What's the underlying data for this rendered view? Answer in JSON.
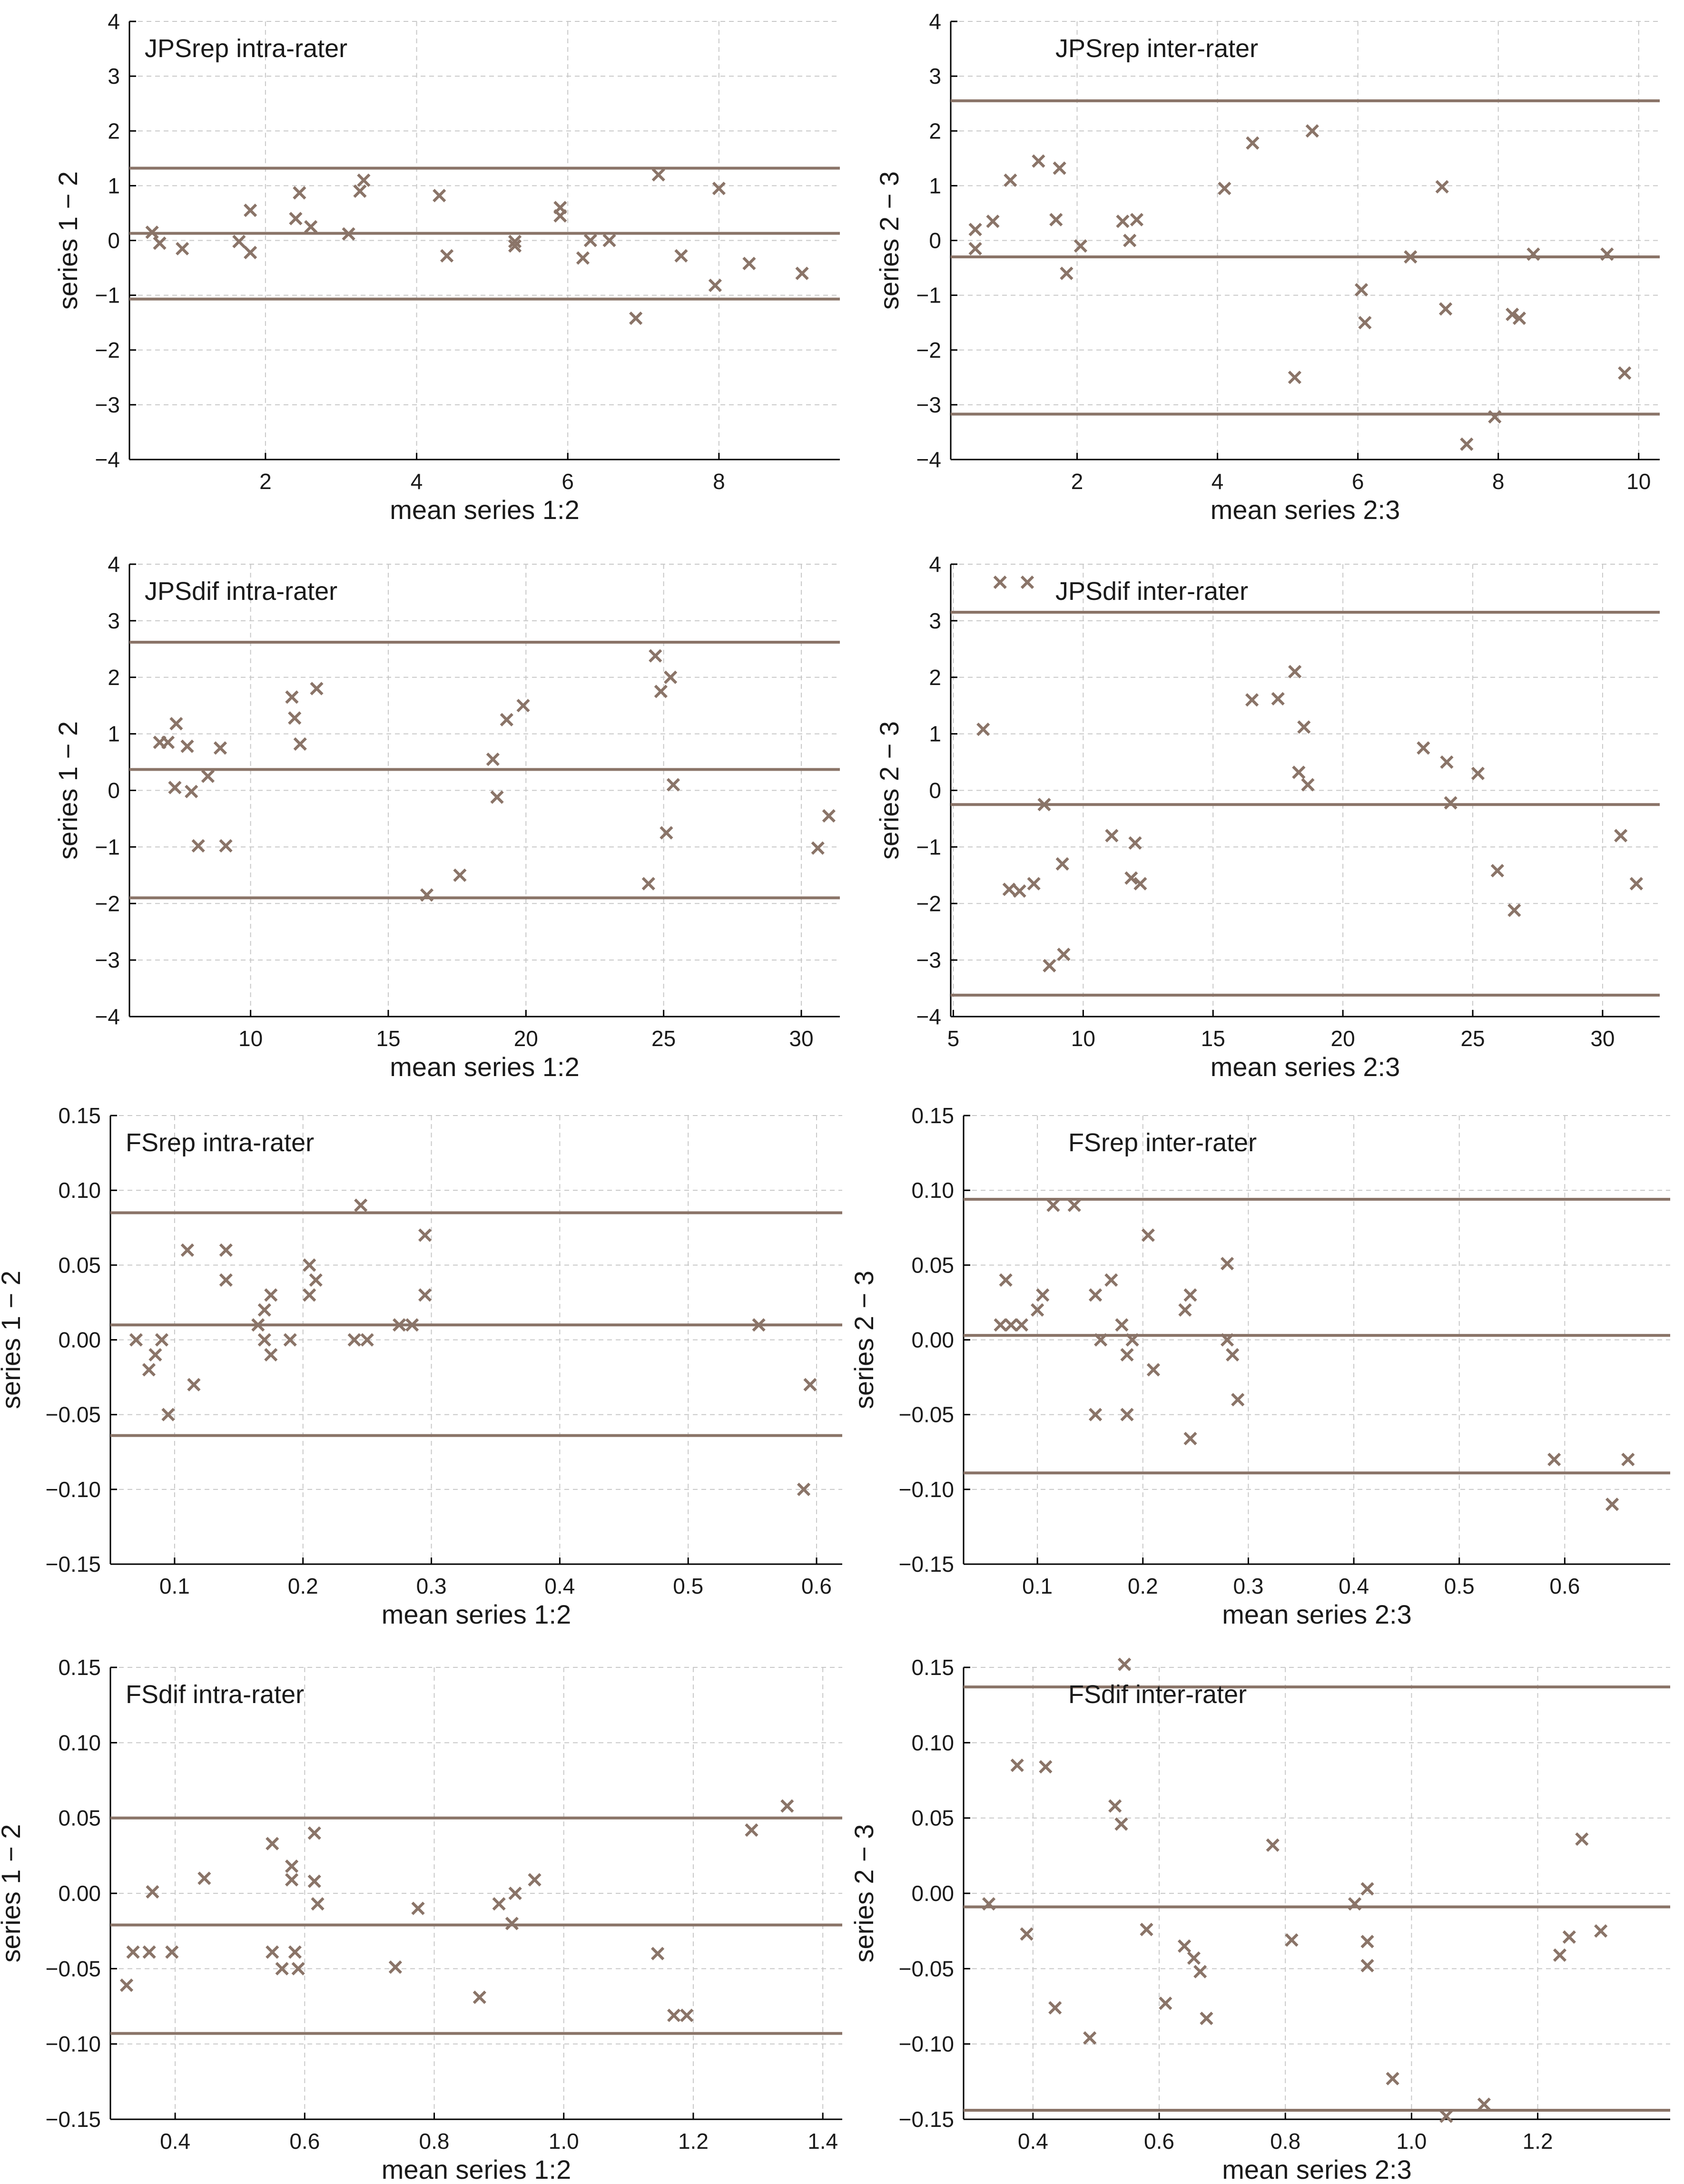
{
  "colors": {
    "marker": "#8a7468",
    "line": "#8a7468",
    "grid": "#c8c8c8",
    "axis": "#000000"
  },
  "chart_data": [
    {
      "type": "scatter",
      "title": "JPSrep intra-rater",
      "xlabel": "mean series 1:2",
      "ylabel": "series 1 − 2",
      "xlim": [
        0.2,
        9.6
      ],
      "ylim": [
        -4,
        4
      ],
      "xticks": [
        2,
        4,
        6,
        8
      ],
      "xtick_labels": [
        "2",
        "4",
        "6",
        "8"
      ],
      "yticks": [
        -4,
        -3,
        -2,
        -1,
        0,
        1,
        2,
        3,
        4
      ],
      "ytick_labels": [
        "−4",
        "−3",
        "−2",
        "−1",
        "0",
        "1",
        "2",
        "3",
        "4"
      ],
      "grid": true,
      "hlines": [
        1.32,
        0.13,
        -1.07
      ],
      "points": [
        [
          0.5,
          0.15
        ],
        [
          0.6,
          -0.05
        ],
        [
          0.9,
          -0.15
        ],
        [
          1.65,
          -0.02
        ],
        [
          1.8,
          0.55
        ],
        [
          1.8,
          -0.22
        ],
        [
          2.4,
          0.4
        ],
        [
          2.45,
          0.87
        ],
        [
          2.6,
          0.25
        ],
        [
          3.1,
          0.12
        ],
        [
          3.25,
          0.9
        ],
        [
          3.3,
          1.1
        ],
        [
          4.3,
          0.82
        ],
        [
          4.4,
          -0.28
        ],
        [
          5.3,
          -0.02
        ],
        [
          5.3,
          -0.1
        ],
        [
          5.9,
          0.6
        ],
        [
          5.9,
          0.45
        ],
        [
          6.2,
          -0.32
        ],
        [
          6.3,
          0.0
        ],
        [
          6.55,
          0.0
        ],
        [
          6.9,
          -1.42
        ],
        [
          7.2,
          1.2
        ],
        [
          7.5,
          -0.28
        ],
        [
          7.95,
          -0.82
        ],
        [
          8.0,
          0.95
        ],
        [
          8.4,
          -0.42
        ],
        [
          9.1,
          -0.6
        ]
      ]
    },
    {
      "type": "scatter",
      "title": "JPSrep inter-rater",
      "xlabel": "mean series 2:3",
      "ylabel": "series 2 − 3",
      "xlim": [
        0.2,
        10.3
      ],
      "ylim": [
        -4,
        4
      ],
      "xticks": [
        2,
        4,
        6,
        8,
        10
      ],
      "xtick_labels": [
        "2",
        "4",
        "6",
        "8",
        "10"
      ],
      "yticks": [
        -4,
        -3,
        -2,
        -1,
        0,
        1,
        2,
        3,
        4
      ],
      "ytick_labels": [
        "−4",
        "−3",
        "−2",
        "−1",
        "0",
        "1",
        "2",
        "3",
        "4"
      ],
      "grid": true,
      "hlines": [
        2.55,
        -0.3,
        -3.17
      ],
      "points": [
        [
          0.55,
          0.2
        ],
        [
          0.55,
          -0.15
        ],
        [
          0.8,
          0.35
        ],
        [
          1.05,
          1.1
        ],
        [
          1.45,
          1.45
        ],
        [
          1.7,
          0.38
        ],
        [
          1.75,
          1.32
        ],
        [
          1.85,
          -0.6
        ],
        [
          2.05,
          -0.1
        ],
        [
          2.65,
          0.35
        ],
        [
          2.75,
          0.0
        ],
        [
          2.85,
          0.38
        ],
        [
          4.1,
          0.95
        ],
        [
          4.5,
          1.78
        ],
        [
          5.1,
          -2.5
        ],
        [
          5.35,
          2.0
        ],
        [
          6.05,
          -0.9
        ],
        [
          6.1,
          -1.5
        ],
        [
          6.75,
          -0.3
        ],
        [
          7.2,
          0.98
        ],
        [
          7.25,
          -1.25
        ],
        [
          7.55,
          -3.72
        ],
        [
          7.95,
          -3.22
        ],
        [
          8.2,
          -1.35
        ],
        [
          8.3,
          -1.42
        ],
        [
          8.5,
          -0.25
        ],
        [
          9.55,
          -0.25
        ],
        [
          9.8,
          -2.42
        ]
      ]
    },
    {
      "type": "scatter",
      "title": "JPSdif intra-rater",
      "xlabel": "mean series 1:2",
      "ylabel": "series 1 − 2",
      "xlim": [
        5.6,
        31.4
      ],
      "ylim": [
        -4,
        4
      ],
      "xticks": [
        10,
        15,
        20,
        25,
        30
      ],
      "xtick_labels": [
        "10",
        "15",
        "20",
        "25",
        "30"
      ],
      "yticks": [
        -4,
        -3,
        -2,
        -1,
        0,
        1,
        2,
        3,
        4
      ],
      "ytick_labels": [
        "−4",
        "−3",
        "−2",
        "−1",
        "0",
        "1",
        "2",
        "3",
        "4"
      ],
      "grid": true,
      "hlines": [
        2.62,
        0.37,
        -1.9
      ],
      "points": [
        [
          6.7,
          0.85
        ],
        [
          7.0,
          0.85
        ],
        [
          7.25,
          0.05
        ],
        [
          7.3,
          1.18
        ],
        [
          7.7,
          0.78
        ],
        [
          7.85,
          -0.02
        ],
        [
          8.1,
          -0.98
        ],
        [
          8.45,
          0.25
        ],
        [
          8.9,
          0.75
        ],
        [
          9.1,
          -0.98
        ],
        [
          11.5,
          1.65
        ],
        [
          11.6,
          1.28
        ],
        [
          11.8,
          0.82
        ],
        [
          12.4,
          1.8
        ],
        [
          16.4,
          -1.85
        ],
        [
          17.6,
          -1.5
        ],
        [
          18.8,
          0.55
        ],
        [
          18.95,
          -0.12
        ],
        [
          19.3,
          1.25
        ],
        [
          19.9,
          1.5
        ],
        [
          24.45,
          -1.65
        ],
        [
          24.7,
          2.38
        ],
        [
          24.9,
          1.75
        ],
        [
          25.1,
          -0.75
        ],
        [
          25.25,
          2.0
        ],
        [
          25.35,
          0.1
        ],
        [
          30.6,
          -1.02
        ],
        [
          31.0,
          -0.45
        ]
      ]
    },
    {
      "type": "scatter",
      "title": "JPSdif inter-rater",
      "xlabel": "mean series 2:3",
      "ylabel": "series 2 − 3",
      "xlim": [
        4.9,
        32.2
      ],
      "ylim": [
        -4,
        4
      ],
      "xticks": [
        5,
        10,
        15,
        20,
        25,
        30
      ],
      "xtick_labels": [
        "5",
        "10",
        "15",
        "20",
        "25",
        "30"
      ],
      "yticks": [
        -4,
        -3,
        -2,
        -1,
        0,
        1,
        2,
        3,
        4
      ],
      "ytick_labels": [
        "−4",
        "−3",
        "−2",
        "−1",
        "0",
        "1",
        "2",
        "3",
        "4"
      ],
      "grid": true,
      "hlines": [
        3.15,
        -0.25,
        -3.62
      ],
      "points": [
        [
          6.15,
          1.08
        ],
        [
          6.8,
          3.68
        ],
        [
          7.15,
          -1.75
        ],
        [
          7.55,
          -1.78
        ],
        [
          7.85,
          3.68
        ],
        [
          8.1,
          -1.65
        ],
        [
          8.5,
          -0.25
        ],
        [
          8.7,
          -3.1
        ],
        [
          9.2,
          -1.3
        ],
        [
          9.25,
          -2.9
        ],
        [
          11.1,
          -0.8
        ],
        [
          11.85,
          -1.55
        ],
        [
          12.0,
          -0.93
        ],
        [
          12.2,
          -1.65
        ],
        [
          16.5,
          1.6
        ],
        [
          17.5,
          1.62
        ],
        [
          18.15,
          2.1
        ],
        [
          18.3,
          0.32
        ],
        [
          18.5,
          1.12
        ],
        [
          18.65,
          0.1
        ],
        [
          23.1,
          0.75
        ],
        [
          24.0,
          0.5
        ],
        [
          24.15,
          -0.22
        ],
        [
          25.2,
          0.3
        ],
        [
          25.95,
          -1.42
        ],
        [
          26.6,
          -2.12
        ],
        [
          30.7,
          -0.8
        ],
        [
          31.3,
          -1.65
        ]
      ]
    },
    {
      "type": "scatter",
      "title": "FSrep intra-rater",
      "xlabel": "mean series 1:2",
      "ylabel": "series 1 − 2",
      "xlim": [
        0.05,
        0.62
      ],
      "ylim": [
        -0.15,
        0.15
      ],
      "xticks": [
        0.1,
        0.2,
        0.3,
        0.4,
        0.5,
        0.6
      ],
      "xtick_labels": [
        "0.1",
        "0.2",
        "0.3",
        "0.4",
        "0.5",
        "0.6"
      ],
      "yticks": [
        -0.15,
        -0.1,
        -0.05,
        0.0,
        0.05,
        0.1,
        0.15
      ],
      "ytick_labels": [
        "−0.15",
        "−0.10",
        "−0.05",
        "0.00",
        "0.05",
        "0.10",
        "0.15"
      ],
      "grid": true,
      "hlines": [
        0.085,
        0.01,
        -0.064
      ],
      "points": [
        [
          0.07,
          0.0
        ],
        [
          0.08,
          -0.02
        ],
        [
          0.085,
          -0.01
        ],
        [
          0.09,
          0.0
        ],
        [
          0.095,
          -0.05
        ],
        [
          0.11,
          0.06
        ],
        [
          0.115,
          -0.03
        ],
        [
          0.14,
          0.06
        ],
        [
          0.14,
          0.04
        ],
        [
          0.165,
          0.01
        ],
        [
          0.17,
          0.0
        ],
        [
          0.17,
          0.02
        ],
        [
          0.175,
          0.03
        ],
        [
          0.175,
          -0.01
        ],
        [
          0.19,
          0.0
        ],
        [
          0.205,
          0.05
        ],
        [
          0.205,
          0.03
        ],
        [
          0.21,
          0.04
        ],
        [
          0.24,
          0.0
        ],
        [
          0.245,
          0.09
        ],
        [
          0.25,
          0.0
        ],
        [
          0.275,
          0.01
        ],
        [
          0.285,
          0.01
        ],
        [
          0.295,
          0.07
        ],
        [
          0.295,
          0.03
        ],
        [
          0.555,
          0.01
        ],
        [
          0.59,
          -0.1
        ],
        [
          0.595,
          -0.03
        ]
      ]
    },
    {
      "type": "scatter",
      "title": "FSrep inter-rater",
      "xlabel": "mean series 2:3",
      "ylabel": "series 2 − 3",
      "xlim": [
        0.03,
        0.7
      ],
      "ylim": [
        -0.15,
        0.15
      ],
      "xticks": [
        0.1,
        0.2,
        0.3,
        0.4,
        0.5,
        0.6
      ],
      "xtick_labels": [
        "0.1",
        "0.2",
        "0.3",
        "0.4",
        "0.5",
        "0.6"
      ],
      "yticks": [
        -0.15,
        -0.1,
        -0.05,
        0.0,
        0.05,
        0.1,
        0.15
      ],
      "ytick_labels": [
        "−0.15",
        "−0.10",
        "−0.05",
        "0.00",
        "0.05",
        "0.10",
        "0.15"
      ],
      "grid": true,
      "hlines": [
        0.094,
        0.003,
        -0.089
      ],
      "points": [
        [
          0.065,
          0.01
        ],
        [
          0.07,
          0.04
        ],
        [
          0.075,
          0.01
        ],
        [
          0.085,
          0.01
        ],
        [
          0.1,
          0.02
        ],
        [
          0.105,
          0.03
        ],
        [
          0.115,
          0.09
        ],
        [
          0.135,
          0.09
        ],
        [
          0.155,
          0.03
        ],
        [
          0.155,
          -0.05
        ],
        [
          0.16,
          0.0
        ],
        [
          0.17,
          0.04
        ],
        [
          0.18,
          0.01
        ],
        [
          0.185,
          -0.01
        ],
        [
          0.185,
          -0.05
        ],
        [
          0.19,
          0.0
        ],
        [
          0.205,
          0.07
        ],
        [
          0.21,
          -0.02
        ],
        [
          0.24,
          0.02
        ],
        [
          0.245,
          0.03
        ],
        [
          0.245,
          -0.066
        ],
        [
          0.28,
          0.051
        ],
        [
          0.28,
          0.0
        ],
        [
          0.285,
          -0.01
        ],
        [
          0.29,
          -0.04
        ],
        [
          0.59,
          -0.08
        ],
        [
          0.645,
          -0.11
        ],
        [
          0.66,
          -0.08
        ]
      ]
    },
    {
      "type": "scatter",
      "title": "FSdif intra-rater",
      "xlabel": "mean series 1:2",
      "ylabel": "series 1 − 2",
      "xlim": [
        0.3,
        1.43
      ],
      "ylim": [
        -0.15,
        0.15
      ],
      "xticks": [
        0.4,
        0.6,
        0.8,
        1.0,
        1.2,
        1.4
      ],
      "xtick_labels": [
        "0.4",
        "0.6",
        "0.8",
        "1.0",
        "1.2",
        "1.4"
      ],
      "yticks": [
        -0.15,
        -0.1,
        -0.05,
        0.0,
        0.05,
        0.1,
        0.15
      ],
      "ytick_labels": [
        "−0.15",
        "−0.10",
        "−0.05",
        "0.00",
        "0.05",
        "0.10",
        "0.15"
      ],
      "grid": true,
      "hlines": [
        0.05,
        -0.021,
        -0.093
      ],
      "points": [
        [
          0.325,
          -0.061
        ],
        [
          0.335,
          -0.039
        ],
        [
          0.36,
          -0.039
        ],
        [
          0.365,
          0.001
        ],
        [
          0.395,
          -0.039
        ],
        [
          0.445,
          0.01
        ],
        [
          0.55,
          0.033
        ],
        [
          0.55,
          -0.039
        ],
        [
          0.565,
          -0.05
        ],
        [
          0.58,
          0.018
        ],
        [
          0.58,
          0.009
        ],
        [
          0.585,
          -0.039
        ],
        [
          0.59,
          -0.05
        ],
        [
          0.615,
          0.04
        ],
        [
          0.615,
          0.008
        ],
        [
          0.62,
          -0.007
        ],
        [
          0.74,
          -0.049
        ],
        [
          0.775,
          -0.01
        ],
        [
          0.87,
          -0.069
        ],
        [
          0.9,
          -0.007
        ],
        [
          0.92,
          -0.02
        ],
        [
          0.925,
          0.0
        ],
        [
          0.955,
          0.009
        ],
        [
          1.145,
          -0.04
        ],
        [
          1.17,
          -0.081
        ],
        [
          1.19,
          -0.081
        ],
        [
          1.29,
          0.042
        ],
        [
          1.345,
          0.058
        ]
      ]
    },
    {
      "type": "scatter",
      "title": "FSdif inter-rater",
      "xlabel": "mean series 2:3",
      "ylabel": "series 2 − 3",
      "xlim": [
        0.29,
        1.41
      ],
      "ylim": [
        -0.15,
        0.15
      ],
      "xticks": [
        0.4,
        0.6,
        0.8,
        1.0,
        1.2
      ],
      "xtick_labels": [
        "0.4",
        "0.6",
        "0.8",
        "1.0",
        "1.2"
      ],
      "yticks": [
        -0.15,
        -0.1,
        -0.05,
        0.0,
        0.05,
        0.1,
        0.15
      ],
      "ytick_labels": [
        "−0.15",
        "−0.10",
        "−0.05",
        "0.00",
        "0.05",
        "0.10",
        "0.15"
      ],
      "grid": true,
      "hlines": [
        0.137,
        -0.009,
        -0.144
      ],
      "points": [
        [
          0.33,
          -0.007
        ],
        [
          0.375,
          0.085
        ],
        [
          0.39,
          -0.027
        ],
        [
          0.42,
          0.084
        ],
        [
          0.435,
          -0.076
        ],
        [
          0.49,
          -0.096
        ],
        [
          0.53,
          0.058
        ],
        [
          0.54,
          0.046
        ],
        [
          0.545,
          0.152
        ],
        [
          0.58,
          -0.024
        ],
        [
          0.61,
          -0.073
        ],
        [
          0.64,
          -0.035
        ],
        [
          0.655,
          -0.043
        ],
        [
          0.665,
          -0.052
        ],
        [
          0.675,
          -0.083
        ],
        [
          0.78,
          0.032
        ],
        [
          0.81,
          -0.031
        ],
        [
          0.91,
          -0.007
        ],
        [
          0.93,
          0.003
        ],
        [
          0.93,
          -0.032
        ],
        [
          0.93,
          -0.048
        ],
        [
          0.97,
          -0.123
        ],
        [
          1.055,
          -0.148
        ],
        [
          1.115,
          -0.14
        ],
        [
          1.235,
          -0.041
        ],
        [
          1.25,
          -0.029
        ],
        [
          1.27,
          0.036
        ],
        [
          1.3,
          -0.025
        ]
      ]
    }
  ]
}
